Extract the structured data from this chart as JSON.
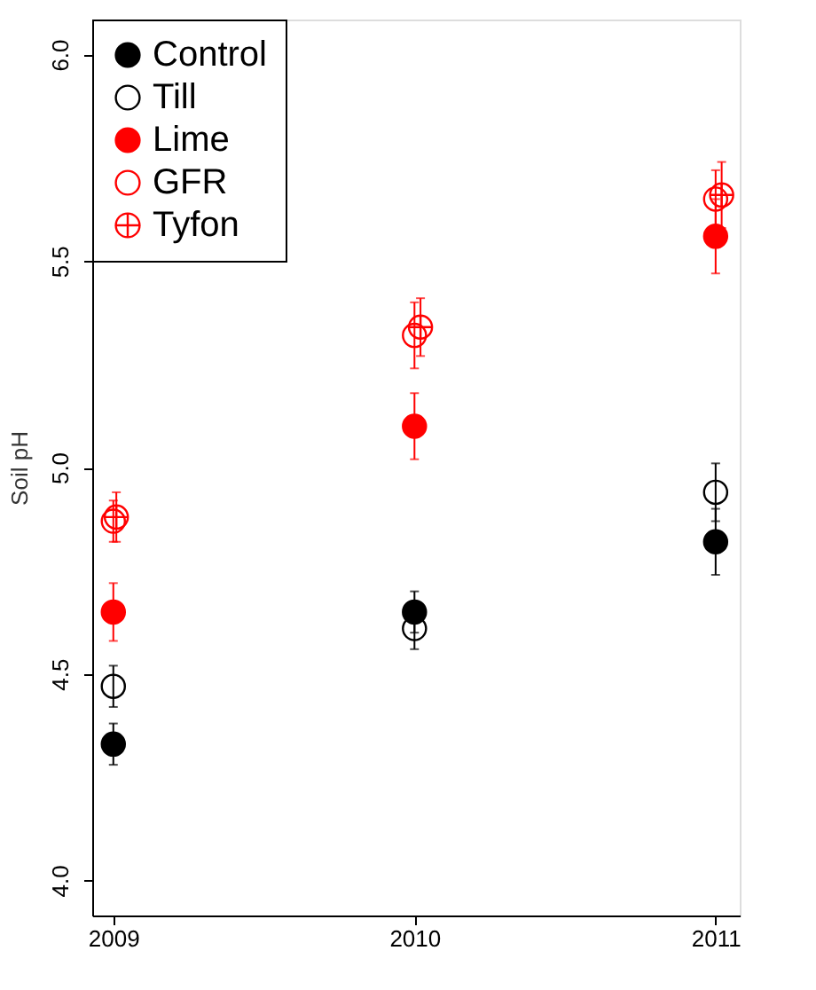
{
  "chart_data": {
    "type": "scatter",
    "ylabel": "Soil pH",
    "xlim": [
      2008.93,
      2011.08
    ],
    "xticks": [
      2009,
      2010,
      2011
    ],
    "ylim": [
      3.915,
      6.085
    ],
    "yticks": [
      {
        "value": 4,
        "label": "4.0"
      },
      4.5,
      {
        "value": 5,
        "label": "5.0"
      },
      5.5,
      {
        "value": 6,
        "label": "6.0"
      }
    ],
    "grid": false,
    "legend": "top left",
    "series": [
      {
        "name": "Control",
        "color": "#000000",
        "marker": "circle",
        "x": [
          2009,
          2010,
          2011
        ],
        "values": [
          4.33,
          4.65,
          4.82
        ],
        "errors": [
          0.05,
          0.05,
          0.08
        ]
      },
      {
        "name": "Till",
        "color": "#000000",
        "marker": "circle-open",
        "x": [
          2009,
          2010,
          2011
        ],
        "values": [
          4.47,
          4.61,
          4.94
        ],
        "errors": [
          0.05,
          0.05,
          0.07
        ]
      },
      {
        "name": "Lime",
        "color": "#ff0000",
        "marker": "circle",
        "x": [
          2009,
          2010,
          2011
        ],
        "values": [
          4.65,
          5.1,
          5.56
        ],
        "errors": [
          0.07,
          0.08,
          0.09
        ]
      },
      {
        "name": "GFR",
        "color": "#ff0000",
        "marker": "circle-open",
        "x": [
          2009,
          2010,
          2011
        ],
        "values": [
          4.87,
          5.32,
          5.65
        ],
        "errors": [
          0.05,
          0.08,
          0.07
        ]
      },
      {
        "name": "Tyfon",
        "color": "#ff0000",
        "marker": "cross",
        "x": [
          2009.01,
          2010.02,
          2011.02
        ],
        "values": [
          4.88,
          5.34,
          5.66
        ],
        "errors": [
          0.06,
          0.07,
          0.08
        ]
      }
    ]
  }
}
